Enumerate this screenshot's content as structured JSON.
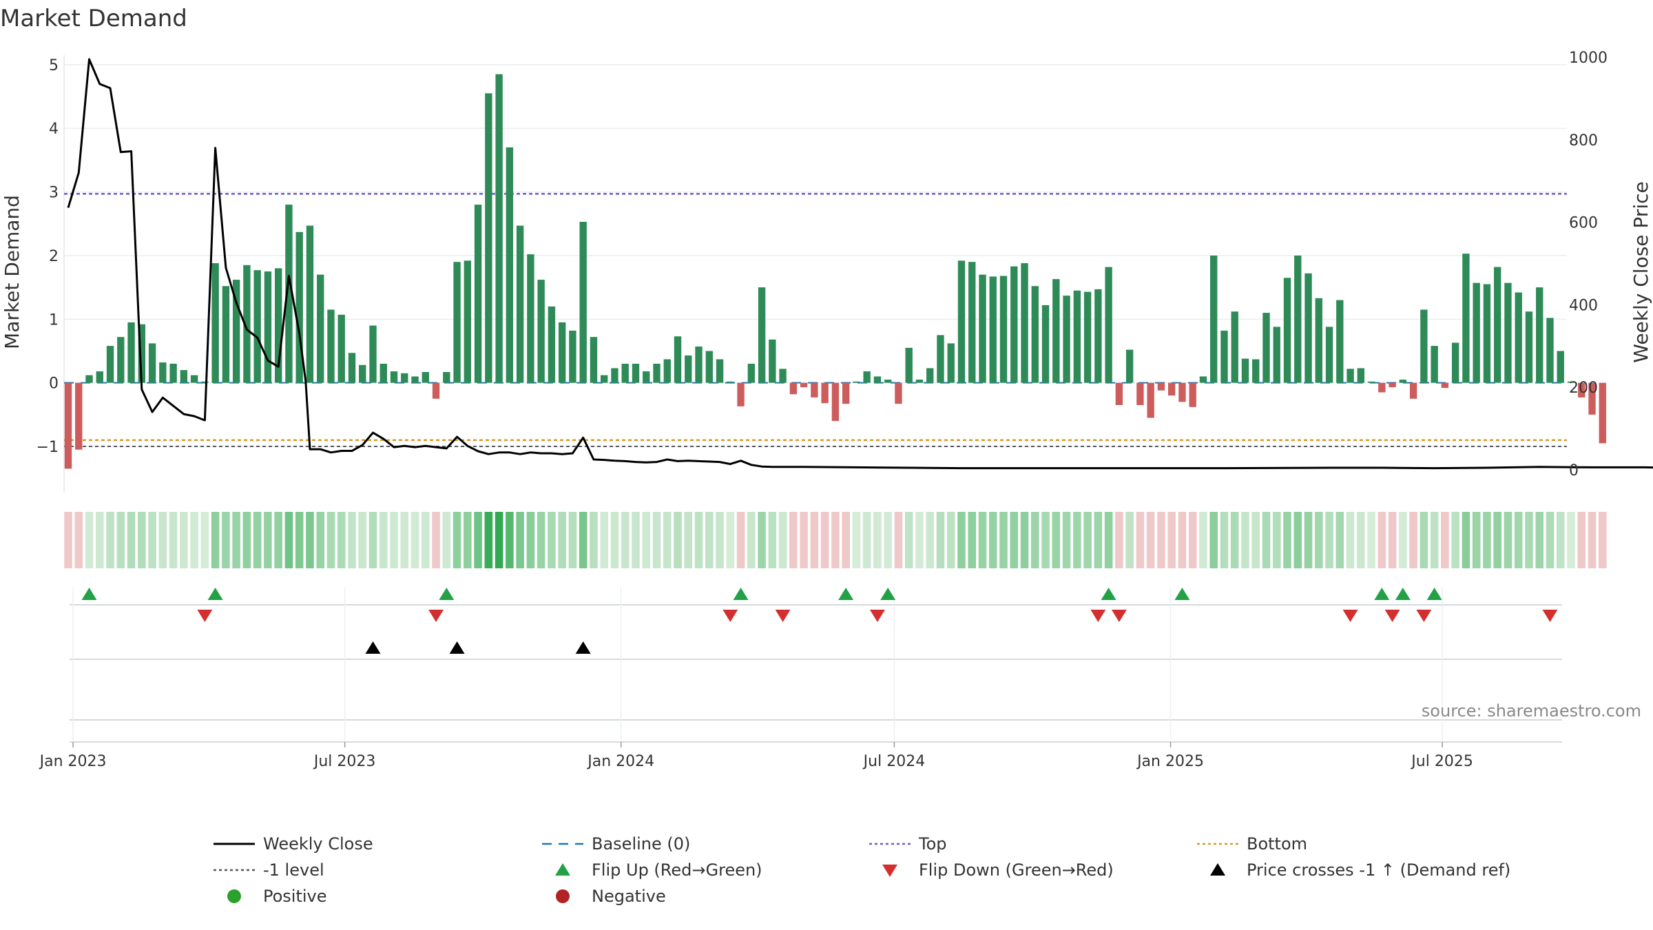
{
  "chart_data": {
    "type": "bar",
    "title": "Market Demand",
    "ylabel": "Market Demand",
    "y2label": "Weekly Close Price",
    "source": "source: sharemaestro.com",
    "ylim": [
      -1.4,
      5.15
    ],
    "y2lim": [
      -5,
      1005
    ],
    "yticks": [
      -1,
      0,
      1,
      2,
      3,
      4,
      5
    ],
    "yticklabels": [
      "−1",
      "0",
      "1",
      "2",
      "3",
      "4",
      "5"
    ],
    "y2ticks": [
      0,
      200,
      400,
      600,
      800,
      1000
    ],
    "y2ticklabels": [
      "0",
      "200",
      "400",
      "600",
      "800",
      "1000"
    ],
    "xlim": [
      "2022-12-26",
      "2025-09-22"
    ],
    "xticks": [
      "2023-01-01",
      "2023-07-01",
      "2024-01-01",
      "2024-07-01",
      "2025-01-01",
      "2025-07-01"
    ],
    "xticklabels": [
      "Jan 2023",
      "Jul 2023",
      "Jan 2024",
      "Jul 2024",
      "Jan 2025",
      "Jul 2025"
    ],
    "grid": true,
    "legend_position": "bottom",
    "start_week": "2022-12-26",
    "levels": {
      "top": 2.97,
      "bottom": -0.9,
      "minus_one": -1,
      "baseline": 0
    },
    "demand": [
      -1.35,
      -1.05,
      0.12,
      0.18,
      0.58,
      0.72,
      0.95,
      0.92,
      0.62,
      0.32,
      0.3,
      0.2,
      0.12,
      0.02,
      1.88,
      1.52,
      1.62,
      1.85,
      1.77,
      1.75,
      1.8,
      2.8,
      2.37,
      2.47,
      1.7,
      1.15,
      1.07,
      0.47,
      0.28,
      0.9,
      0.3,
      0.18,
      0.15,
      0.1,
      0.17,
      -0.25,
      0.17,
      1.9,
      1.92,
      2.8,
      4.55,
      4.85,
      3.7,
      2.47,
      2.02,
      1.62,
      1.2,
      0.95,
      0.82,
      2.53,
      0.72,
      0.12,
      0.23,
      0.3,
      0.3,
      0.18,
      0.3,
      0.37,
      0.73,
      0.43,
      0.57,
      0.5,
      0.37,
      0.02,
      -0.37,
      0.3,
      1.5,
      0.68,
      0.22,
      -0.18,
      -0.07,
      -0.23,
      -0.32,
      -0.6,
      -0.33,
      0.02,
      0.18,
      0.1,
      0.05,
      -0.33,
      0.55,
      0.05,
      0.23,
      0.75,
      0.62,
      1.92,
      1.9,
      1.7,
      1.67,
      1.68,
      1.83,
      1.88,
      1.52,
      1.22,
      1.63,
      1.37,
      1.45,
      1.43,
      1.47,
      1.82,
      -0.35,
      0.52,
      -0.35,
      -0.55,
      -0.12,
      -0.2,
      -0.3,
      -0.38,
      0.1,
      2.0,
      0.82,
      1.12,
      0.38,
      0.37,
      1.1,
      0.88,
      1.65,
      2.0,
      1.72,
      1.33,
      0.88,
      1.3,
      0.22,
      0.23,
      0.02,
      -0.15,
      -0.07,
      0.05,
      -0.25,
      1.15,
      0.58,
      -0.08,
      0.63,
      2.03,
      1.57,
      1.55,
      1.82,
      1.57,
      1.42,
      1.12,
      1.5,
      1.02,
      0.5,
      0.02,
      -0.23,
      -0.5,
      -0.95
    ],
    "weekly_close": [
      [
        0,
        635
      ],
      [
        1,
        720
      ],
      [
        2,
        995
      ],
      [
        3,
        935
      ],
      [
        4,
        925
      ],
      [
        5,
        770
      ],
      [
        6,
        772
      ],
      [
        7,
        195
      ],
      [
        8,
        140
      ],
      [
        9,
        175
      ],
      [
        10,
        155
      ],
      [
        11,
        135
      ],
      [
        12,
        130
      ],
      [
        13,
        120
      ],
      [
        14,
        780
      ],
      [
        15,
        490
      ],
      [
        16,
        405
      ],
      [
        17,
        340
      ],
      [
        18,
        320
      ],
      [
        19,
        265
      ],
      [
        20,
        250
      ],
      [
        21,
        470
      ],
      [
        22,
        330
      ],
      [
        22.6,
        215
      ],
      [
        23,
        50
      ],
      [
        24,
        50
      ],
      [
        25,
        42
      ],
      [
        26,
        46
      ],
      [
        27,
        46
      ],
      [
        28,
        60
      ],
      [
        29,
        90
      ],
      [
        30,
        75
      ],
      [
        31,
        55
      ],
      [
        32,
        58
      ],
      [
        33,
        55
      ],
      [
        34,
        58
      ],
      [
        35,
        55
      ],
      [
        36,
        52
      ],
      [
        37,
        80
      ],
      [
        38,
        58
      ],
      [
        39,
        45
      ],
      [
        40,
        38
      ],
      [
        41,
        42
      ],
      [
        42,
        42
      ],
      [
        43,
        38
      ],
      [
        44,
        42
      ],
      [
        45,
        40
      ],
      [
        46,
        40
      ],
      [
        47,
        38
      ],
      [
        48,
        40
      ],
      [
        49,
        78
      ],
      [
        50,
        25
      ],
      [
        51,
        24
      ],
      [
        52,
        22
      ],
      [
        53,
        21
      ],
      [
        54,
        19
      ],
      [
        55,
        18
      ],
      [
        56,
        19
      ],
      [
        57,
        25
      ],
      [
        58,
        21
      ],
      [
        59,
        22
      ],
      [
        60,
        21
      ],
      [
        61,
        20
      ],
      [
        62,
        19
      ],
      [
        63,
        14
      ],
      [
        64,
        22
      ],
      [
        65,
        12
      ],
      [
        66,
        8
      ],
      [
        67,
        7
      ],
      [
        70,
        7
      ],
      [
        75,
        6
      ],
      [
        80,
        5
      ],
      [
        85,
        4
      ],
      [
        90,
        4
      ],
      [
        100,
        4
      ],
      [
        110,
        4
      ],
      [
        120,
        5
      ],
      [
        125,
        5
      ],
      [
        130,
        4
      ],
      [
        135,
        5
      ],
      [
        140,
        7
      ],
      [
        145,
        6
      ],
      [
        150,
        6
      ],
      [
        152,
        5
      ]
    ],
    "flip_up_weeks": [
      2,
      14,
      36,
      64,
      74,
      78,
      99,
      106,
      125,
      127,
      130
    ],
    "flip_down_weeks": [
      13,
      35,
      63,
      68,
      77,
      98,
      100,
      122,
      126,
      129,
      141
    ],
    "price_cross_weeks": [
      29,
      37,
      49
    ],
    "legend": [
      "Weekly Close",
      "Baseline (0)",
      "Top",
      "Bottom",
      "-1 level",
      "Flip Up (Red→Green)",
      "Flip Down (Green→Red)",
      "Price crosses -1 ↑ (Demand ref)",
      "Positive",
      "Negative"
    ],
    "colors": {
      "positive_bar": "#2e8b57",
      "negative_bar": "#cd5c5c",
      "price_line": "#000000",
      "baseline": "#1f77b4",
      "top": "#6a5acd",
      "bottom": "#d99a20",
      "minus_one": "#555555",
      "flip_up": "#22a146",
      "flip_down": "#d32f2f",
      "price_cross": "#000000",
      "positive_dot": "#2ca02c",
      "negative_dot": "#b22222"
    }
  }
}
